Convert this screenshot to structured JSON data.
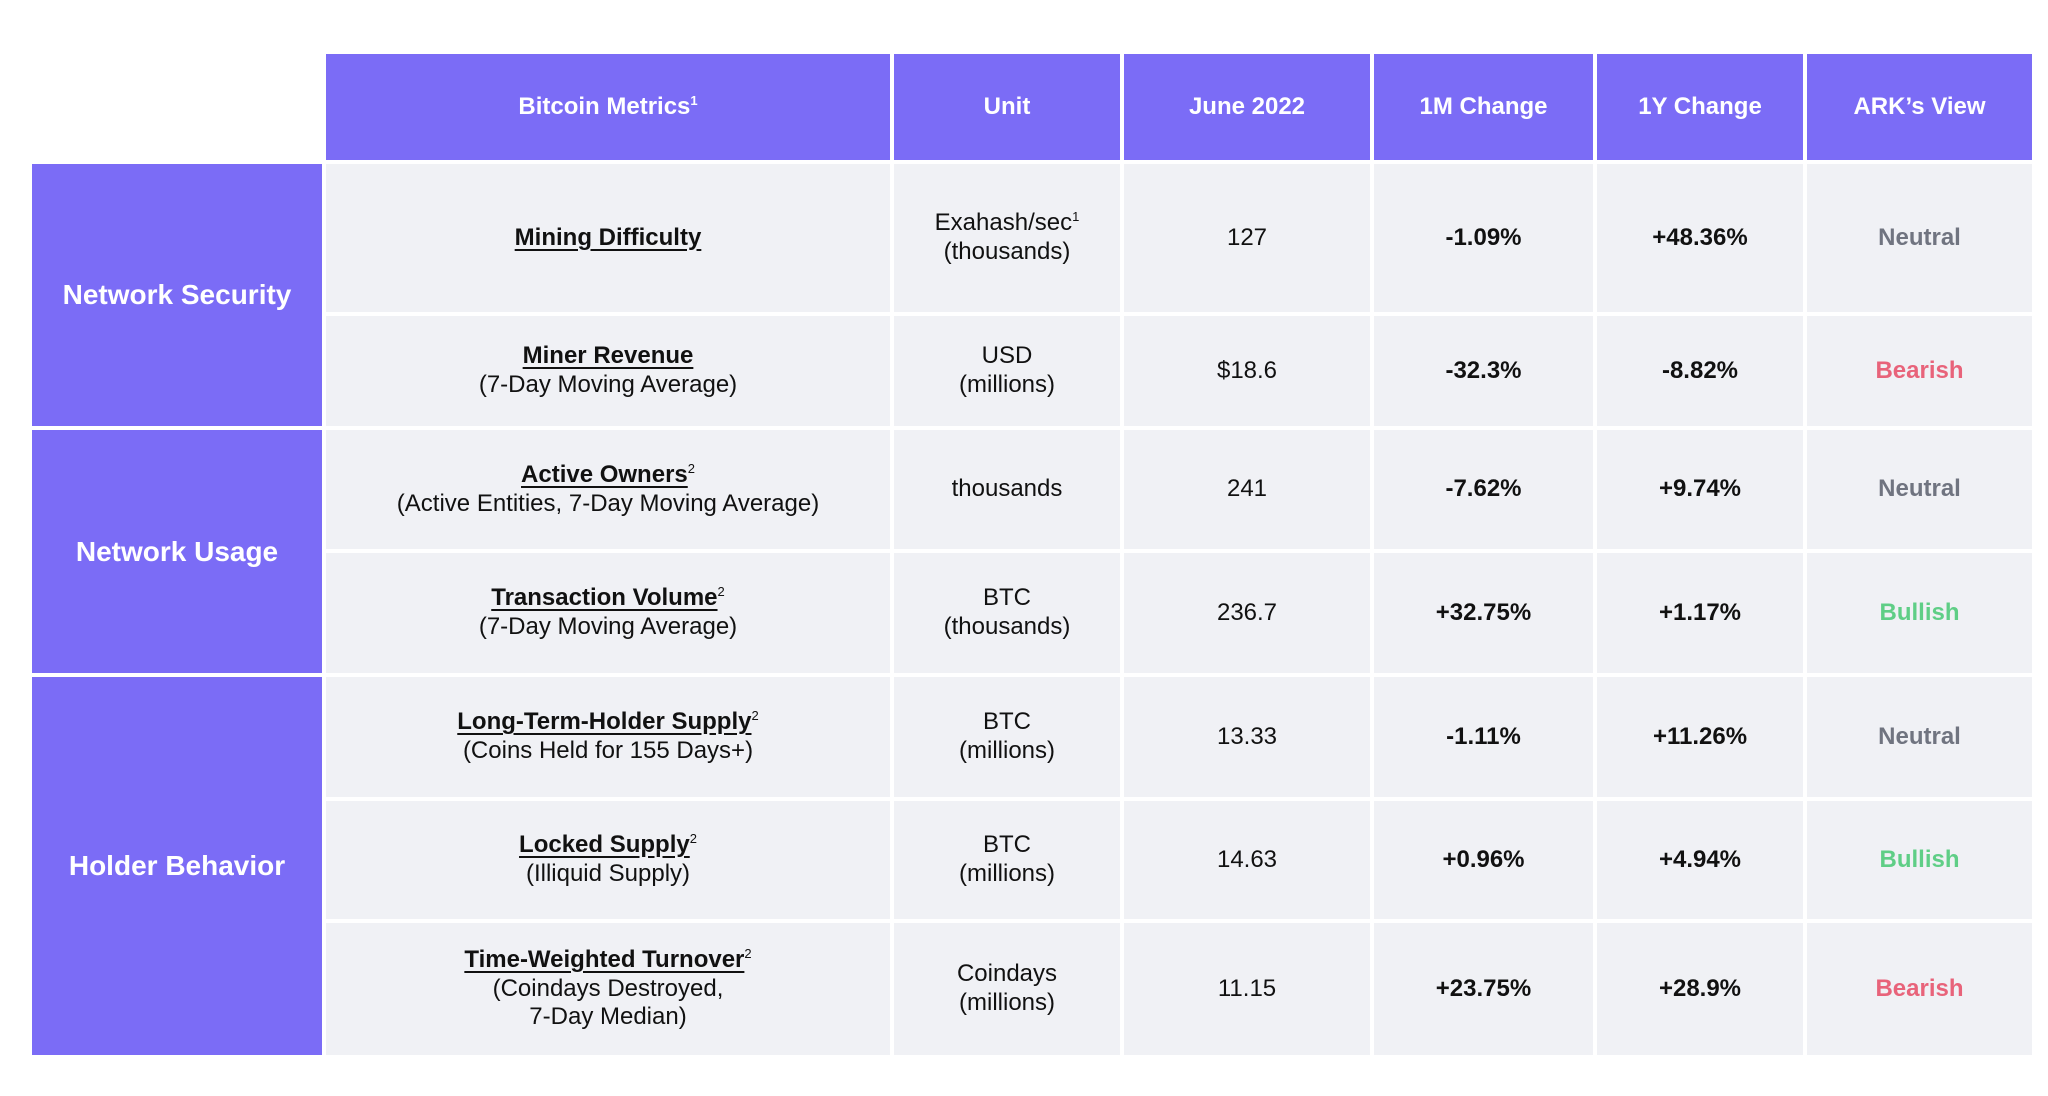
{
  "header": {
    "metrics": "Bitcoin Metrics",
    "metrics_sup": "1",
    "unit": "Unit",
    "june": "June 2022",
    "m1": "1M Change",
    "y1": "1Y Change",
    "view": "ARK’s View"
  },
  "groups": [
    "Network Security",
    "Network Usage",
    "Holder Behavior"
  ],
  "rows": [
    {
      "name": "Mining Difficulty",
      "sup": "",
      "sub": [
        "",
        ""
      ],
      "unit": [
        "Exahash/sec",
        "(thousands)"
      ],
      "unit_sup": "1",
      "value": "127",
      "m1": "-1.09%",
      "y1": "+48.36%",
      "view": "Neutral"
    },
    {
      "name": "Miner Revenue",
      "sup": "",
      "sub": [
        "(7-Day Moving Average)",
        ""
      ],
      "unit": [
        "USD",
        "(millions)"
      ],
      "unit_sup": "",
      "value": "$18.6",
      "m1": "-32.3%",
      "y1": "-8.82%",
      "view": "Bearish"
    },
    {
      "name": "Active Owners",
      "sup": "2",
      "sub": [
        "(Active Entities, 7-Day Moving Average)",
        ""
      ],
      "unit": [
        "thousands",
        ""
      ],
      "unit_sup": "",
      "value": "241",
      "m1": "-7.62%",
      "y1": "+9.74%",
      "view": "Neutral"
    },
    {
      "name": "Transaction Volume",
      "sup": "2",
      "sub": [
        "(7-Day Moving Average)",
        ""
      ],
      "unit": [
        "BTC",
        "(thousands)"
      ],
      "unit_sup": "",
      "value": "236.7",
      "m1": "+32.75%",
      "y1": "+1.17%",
      "view": "Bullish"
    },
    {
      "name": "Long-Term-Holder Supply",
      "sup": "2",
      "sub": [
        "(Coins Held for 155 Days+)",
        ""
      ],
      "unit": [
        "BTC",
        "(millions)"
      ],
      "unit_sup": "",
      "value": "13.33",
      "m1": "-1.11%",
      "y1": "+11.26%",
      "view": "Neutral"
    },
    {
      "name": "Locked Supply",
      "sup": "2",
      "sub": [
        "(Illiquid Supply)",
        ""
      ],
      "unit": [
        "BTC",
        "(millions)"
      ],
      "unit_sup": "",
      "value": "14.63",
      "m1": "+0.96%",
      "y1": "+4.94%",
      "view": "Bullish"
    },
    {
      "name": "Time-Weighted Turnover",
      "sup": "2",
      "sub": [
        "(Coindays Destroyed,",
        "7-Day Median)"
      ],
      "unit": [
        "Coindays",
        "(millions)"
      ],
      "unit_sup": "",
      "value": "11.15",
      "m1": "+23.75%",
      "y1": "+28.9%",
      "view": "Bearish"
    }
  ],
  "colors": {
    "header_bg": "#7b6cf6",
    "cell_bg": "#f0f1f5",
    "neutral": "#707480",
    "bearish": "#e8637a",
    "bullish": "#5fce86"
  }
}
